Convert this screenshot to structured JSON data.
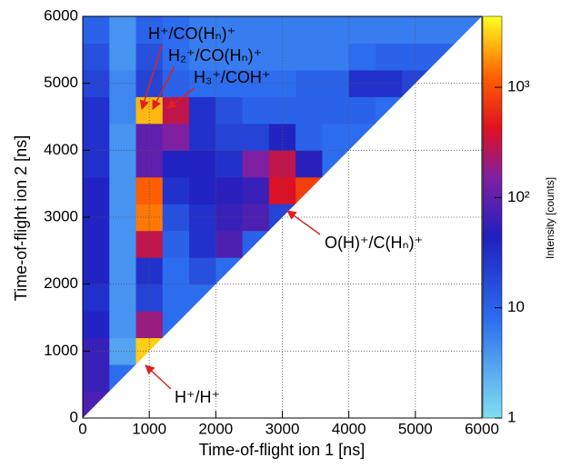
{
  "chart_data": {
    "type": "heatmap",
    "xlabel": "Time-of-flight ion 1 [ns]",
    "ylabel": "Time-of-flight ion 2 [ns]",
    "xlim": [
      0,
      6000
    ],
    "ylim": [
      0,
      6000
    ],
    "xticks": [
      0,
      1000,
      2000,
      3000,
      4000,
      5000,
      6000
    ],
    "yticks": [
      0,
      1000,
      2000,
      3000,
      4000,
      5000,
      6000
    ],
    "grid": true,
    "xbins": [
      0,
      400,
      800,
      1200,
      1600,
      2000,
      2400,
      2800,
      3200,
      3600,
      4000,
      4400,
      4800,
      5200,
      5600,
      6000
    ],
    "ybins": [
      0,
      400,
      800,
      1200,
      1600,
      2000,
      2400,
      2800,
      3200,
      3600,
      4000,
      4400,
      4800,
      5200,
      5600,
      6000
    ],
    "z": [
      [
        80,
        null,
        null,
        null,
        null,
        null,
        null,
        null,
        null,
        null,
        null,
        null,
        null,
        null,
        null
      ],
      [
        60,
        8,
        null,
        null,
        null,
        null,
        null,
        null,
        null,
        null,
        null,
        null,
        null,
        null,
        null
      ],
      [
        60,
        3,
        3000,
        null,
        null,
        null,
        null,
        null,
        null,
        null,
        null,
        null,
        null,
        null,
        null
      ],
      [
        40,
        4,
        200,
        8,
        null,
        null,
        null,
        null,
        null,
        null,
        null,
        null,
        null,
        null,
        null
      ],
      [
        30,
        4,
        20,
        8,
        8,
        null,
        null,
        null,
        null,
        null,
        null,
        null,
        null,
        null,
        null
      ],
      [
        40,
        4,
        30,
        8,
        15,
        8,
        null,
        null,
        null,
        null,
        null,
        null,
        null,
        null,
        null
      ],
      [
        40,
        4,
        300,
        10,
        30,
        80,
        10,
        null,
        null,
        null,
        null,
        null,
        null,
        null,
        null
      ],
      [
        40,
        4,
        1500,
        15,
        30,
        60,
        80,
        20,
        null,
        null,
        null,
        null,
        null,
        null,
        null
      ],
      [
        40,
        4,
        1200,
        30,
        40,
        50,
        60,
        400,
        800,
        null,
        null,
        null,
        null,
        null,
        null
      ],
      [
        30,
        4,
        100,
        40,
        40,
        30,
        150,
        300,
        50,
        8,
        null,
        null,
        null,
        null,
        null
      ],
      [
        30,
        4,
        100,
        150,
        30,
        20,
        20,
        40,
        10,
        8,
        8,
        null,
        null,
        null,
        null
      ],
      [
        30,
        5,
        2500,
        300,
        30,
        15,
        10,
        10,
        10,
        10,
        10,
        8,
        null,
        null,
        null
      ],
      [
        20,
        5,
        20,
        10,
        8,
        8,
        8,
        8,
        10,
        10,
        30,
        30,
        20,
        null,
        null
      ],
      [
        15,
        4,
        15,
        8,
        6,
        6,
        6,
        6,
        6,
        6,
        8,
        10,
        10,
        10,
        null
      ],
      [
        10,
        4,
        10,
        8,
        6,
        6,
        6,
        6,
        6,
        6,
        6,
        6,
        6,
        6,
        6
      ]
    ],
    "zlabel": "Intensity [counts]",
    "zlog": true,
    "zlim": [
      1,
      4400
    ],
    "zticks": [
      1,
      10,
      {
        "value": 100,
        "label": "10²"
      },
      {
        "value": 1000,
        "label": "10³"
      }
    ],
    "annotations": [
      "H⁺/CO(Hₙ)⁺",
      "H₂⁺/CO(Hₙ)⁺",
      "H₃⁺/COH⁺",
      "O(H)⁺/C(Hₙ)⁺",
      "H⁺/H⁺"
    ],
    "annotation_color": "#e02020"
  }
}
